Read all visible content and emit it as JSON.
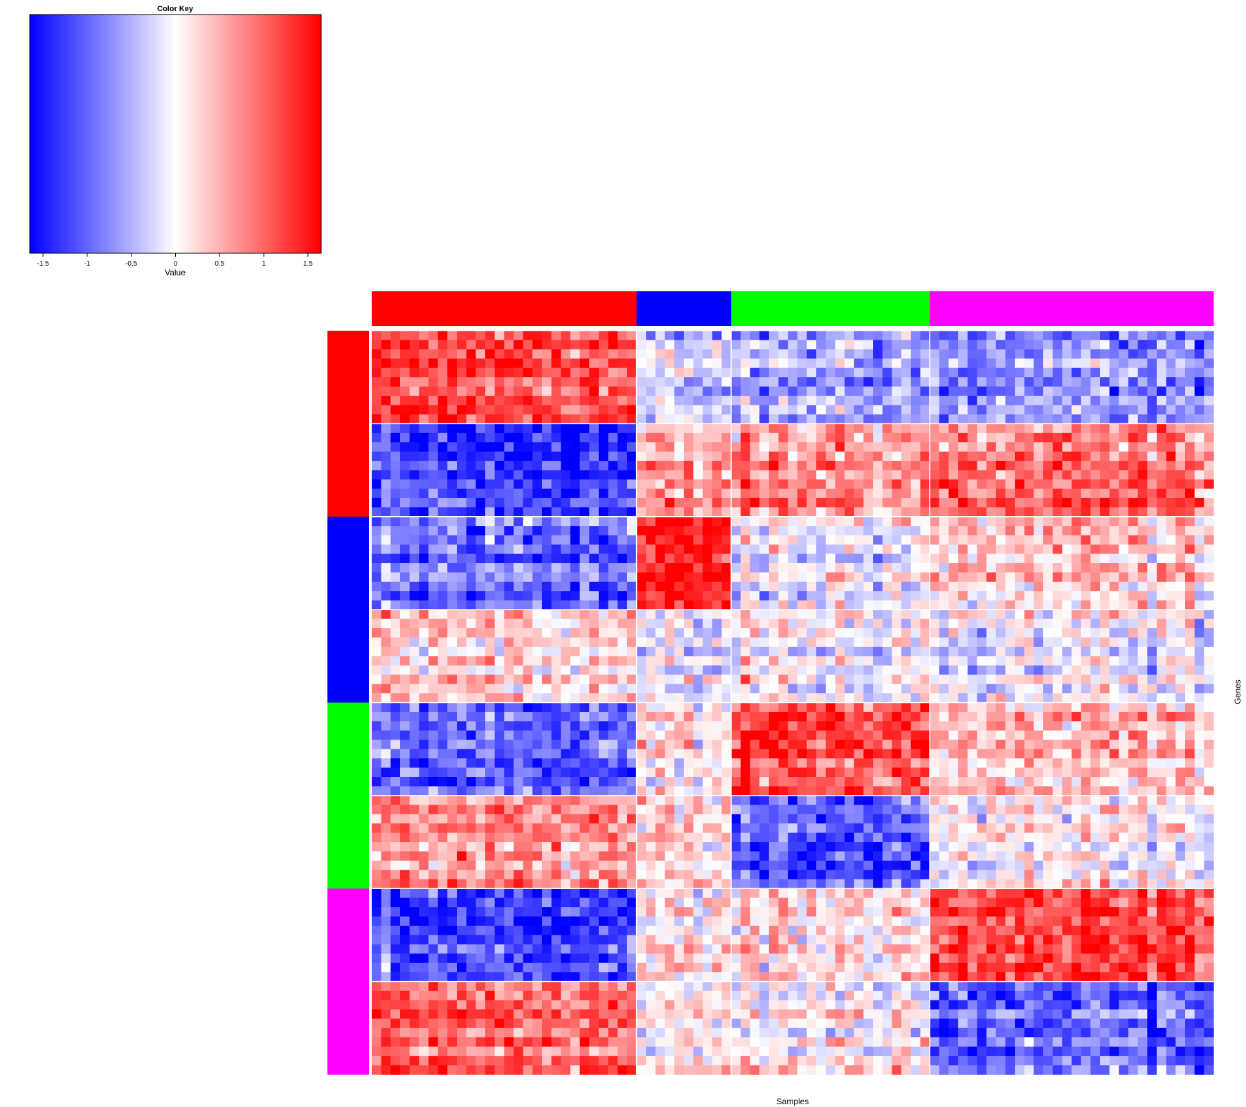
{
  "chart_data": {
    "type": "heatmap",
    "xlabel": "Samples",
    "ylabel": "Genes",
    "color_key": {
      "title": "Color Key",
      "label": "Value",
      "range": [
        -1.65,
        1.65
      ],
      "ticks": [
        "-1.5",
        "-1",
        "-0.5",
        "0",
        "0.5",
        "1",
        "1.5"
      ],
      "tick_values": [
        -1.5,
        -1,
        -0.5,
        0,
        0.5,
        1,
        1.5
      ],
      "low_color": "#0000ff",
      "mid_color": "#ffffff",
      "high_color": "#ff0000"
    },
    "sample_groups": [
      {
        "group": 1,
        "color": "#ff0000",
        "n": 28
      },
      {
        "group": 2,
        "color": "#0000ff",
        "n": 10
      },
      {
        "group": 3,
        "color": "#00ff00",
        "n": 21
      },
      {
        "group": 4,
        "color": "#ff00ff",
        "n": 30
      }
    ],
    "gene_groups": [
      {
        "group": 1,
        "color": "#ff0000",
        "blocks": [
          {
            "n": 10,
            "means": [
              1.2,
              -0.3,
              -0.5,
              -0.7
            ]
          },
          {
            "n": 10,
            "means": [
              -1.3,
              0.6,
              0.7,
              0.9
            ]
          }
        ]
      },
      {
        "group": 2,
        "color": "#0000ff",
        "blocks": [
          {
            "n": 10,
            "means": [
              -0.9,
              1.5,
              -0.1,
              0.3
            ]
          },
          {
            "n": 10,
            "means": [
              0.3,
              -0.2,
              0.0,
              -0.1
            ]
          }
        ]
      },
      {
        "group": 3,
        "color": "#00ff00",
        "blocks": [
          {
            "n": 10,
            "means": [
              -1.0,
              0.1,
              1.2,
              0.4
            ]
          },
          {
            "n": 10,
            "means": [
              0.8,
              0.3,
              -1.0,
              0.1
            ]
          }
        ]
      },
      {
        "group": 4,
        "color": "#ff00ff",
        "blocks": [
          {
            "n": 10,
            "means": [
              -1.2,
              0.1,
              0.2,
              1.2
            ]
          },
          {
            "n": 10,
            "means": [
              1.0,
              0.1,
              0.1,
              -1.0
            ]
          }
        ]
      }
    ]
  }
}
